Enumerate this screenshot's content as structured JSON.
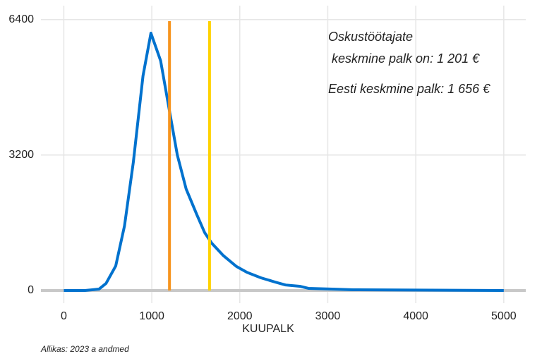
{
  "chart_data": {
    "type": "line",
    "x_label": "KUUPALK",
    "source": "Allikas: 2023 a andmed",
    "x": [
      0,
      240,
      400,
      480,
      590,
      690,
      790,
      900,
      990,
      1100,
      1190,
      1290,
      1390,
      1510,
      1600,
      1680,
      1810,
      1960,
      2080,
      2240,
      2400,
      2520,
      2680,
      2780,
      3050,
      3290,
      5000
    ],
    "series": [
      {
        "color": "#0072ce",
        "values": [
          0,
          0,
          33,
          167,
          580,
          1530,
          3030,
          5070,
          6080,
          5430,
          4370,
          3200,
          2400,
          1800,
          1370,
          1120,
          830,
          570,
          430,
          300,
          200,
          130,
          100,
          50,
          33,
          17,
          0
        ]
      }
    ],
    "reference_lines": [
      {
        "value": 1201,
        "color": "#f7941d",
        "label": [
          "Oskustöötajate",
          " keskmine palk on: 1 201 €"
        ]
      },
      {
        "value": 1656,
        "color": "#ffd200",
        "label": [
          "Eesti keskmine palk: 1 656 €"
        ]
      }
    ],
    "xlim": [
      -260,
      5250
    ],
    "xticks": [
      0,
      1000,
      2000,
      3000,
      4000,
      5000
    ],
    "ylim": [
      -300,
      6730
    ],
    "yticks": [
      0,
      3200,
      6400
    ],
    "grid": true
  }
}
